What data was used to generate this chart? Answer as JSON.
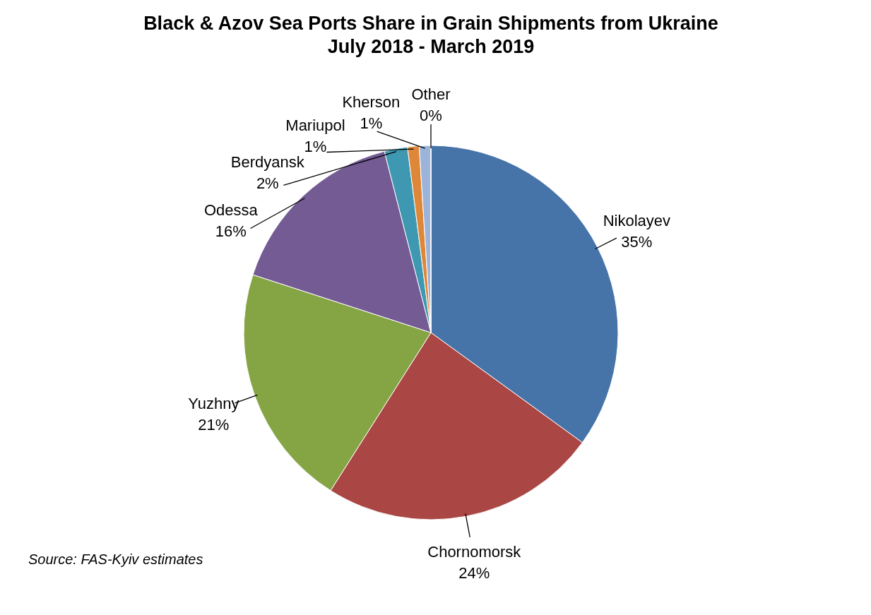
{
  "chart_data": {
    "type": "pie",
    "title": "Black & Azov Sea Ports Share in Grain Shipments from Ukraine",
    "subtitle": "July 2018 - March 2019",
    "categories": [
      "Nikolayev",
      "Chornomorsk",
      "Yuzhny",
      "Odessa",
      "Berdyansk",
      "Mariupol",
      "Kherson",
      "Other"
    ],
    "values": [
      35,
      24,
      21,
      16,
      2,
      1,
      1,
      0
    ],
    "value_labels": [
      "35%",
      "24%",
      "21%",
      "16%",
      "2%",
      "1%",
      "1%",
      "0%"
    ],
    "colors": [
      "#4673a8",
      "#aa4744",
      "#85a444",
      "#745b94",
      "#3f98b1",
      "#de8739",
      "#9db4da",
      "#e8928f"
    ],
    "annotations": [
      "Source:  FAS-Kyiv estimates"
    ]
  }
}
